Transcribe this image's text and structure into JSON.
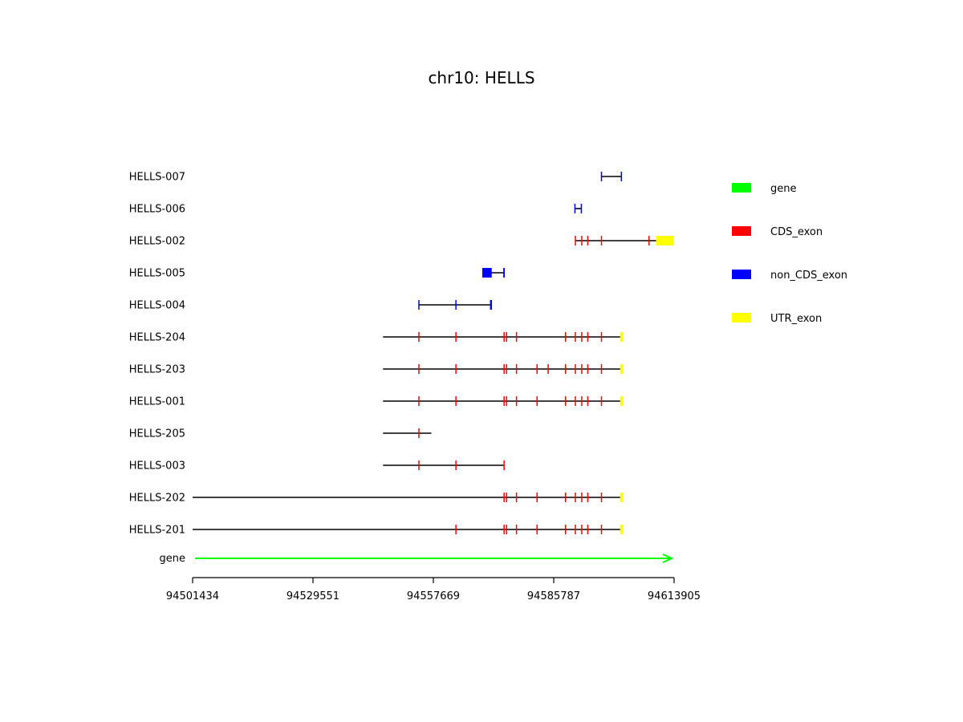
{
  "chart_data": {
    "type": "gene_structure",
    "title": "chr10: HELLS",
    "x_range": [
      94501434,
      94613905
    ],
    "x_ticks": [
      94501434,
      94529551,
      94557669,
      94585787,
      94613905
    ],
    "x_tick_labels": [
      "94501434",
      "94529551",
      "94557669",
      "94585787",
      "94613905"
    ],
    "gene": {
      "label": "gene",
      "start": 94502000,
      "end": 94612800,
      "strand": "+",
      "color": "#00ff00"
    },
    "legend": [
      {
        "name": "gene",
        "color": "#00ff00"
      },
      {
        "name": "CDS_exon",
        "color": "#ff0000"
      },
      {
        "name": "non_CDS_exon",
        "color": "#0000ff"
      },
      {
        "name": "UTR_exon",
        "color": "#ffff00"
      }
    ],
    "transcripts": [
      {
        "name": "HELLS-007",
        "start": 94596900,
        "end": 94601650,
        "exons": [
          {
            "start": 94596800,
            "end": 94596900,
            "type": "non_CDS_exon"
          },
          {
            "start": 94601450,
            "end": 94601700,
            "type": "non_CDS_exon"
          }
        ]
      },
      {
        "name": "HELLS-006",
        "start": 94590700,
        "end": 94592300,
        "exons": [
          {
            "start": 94590600,
            "end": 94590750,
            "type": "non_CDS_exon"
          },
          {
            "start": 94592100,
            "end": 94592350,
            "type": "non_CDS_exon"
          }
        ]
      },
      {
        "name": "HELLS-002",
        "start": 94590800,
        "end": 94613750,
        "exons": [
          {
            "start": 94590700,
            "end": 94590850,
            "type": "CDS_exon"
          },
          {
            "start": 94592200,
            "end": 94592400,
            "type": "CDS_exon"
          },
          {
            "start": 94593600,
            "end": 94593750,
            "type": "CDS_exon"
          },
          {
            "start": 94596800,
            "end": 94596950,
            "type": "CDS_exon"
          },
          {
            "start": 94607900,
            "end": 94608050,
            "type": "CDS_exon"
          },
          {
            "start": 94609700,
            "end": 94613750,
            "type": "UTR_exon"
          }
        ]
      },
      {
        "name": "HELLS-005",
        "start": 94569200,
        "end": 94574300,
        "exons": [
          {
            "start": 94569100,
            "end": 94571300,
            "type": "non_CDS_exon"
          },
          {
            "start": 94574000,
            "end": 94574350,
            "type": "non_CDS_exon"
          }
        ]
      },
      {
        "name": "HELLS-004",
        "start": 94554200,
        "end": 94571300,
        "exons": [
          {
            "start": 94554150,
            "end": 94554300,
            "type": "non_CDS_exon"
          },
          {
            "start": 94562800,
            "end": 94562950,
            "type": "non_CDS_exon"
          },
          {
            "start": 94570900,
            "end": 94571350,
            "type": "non_CDS_exon"
          }
        ]
      },
      {
        "name": "HELLS-204",
        "start": 94545900,
        "end": 94601700,
        "exons": [
          {
            "start": 94554150,
            "end": 94554300,
            "type": "CDS_exon"
          },
          {
            "start": 94562800,
            "end": 94562950,
            "type": "CDS_exon"
          },
          {
            "start": 94574050,
            "end": 94574200,
            "type": "CDS_exon"
          },
          {
            "start": 94574650,
            "end": 94574800,
            "type": "CDS_exon"
          },
          {
            "start": 94576950,
            "end": 94577100,
            "type": "CDS_exon"
          },
          {
            "start": 94588400,
            "end": 94588550,
            "type": "CDS_exon"
          },
          {
            "start": 94590700,
            "end": 94590850,
            "type": "CDS_exon"
          },
          {
            "start": 94592200,
            "end": 94592450,
            "type": "CDS_exon"
          },
          {
            "start": 94593600,
            "end": 94593750,
            "type": "CDS_exon"
          },
          {
            "start": 94596800,
            "end": 94596950,
            "type": "CDS_exon"
          },
          {
            "start": 94601300,
            "end": 94602000,
            "type": "UTR_exon"
          }
        ]
      },
      {
        "name": "HELLS-203",
        "start": 94545900,
        "end": 94601700,
        "exons": [
          {
            "start": 94554150,
            "end": 94554300,
            "type": "CDS_exon"
          },
          {
            "start": 94562800,
            "end": 94562950,
            "type": "CDS_exon"
          },
          {
            "start": 94574050,
            "end": 94574200,
            "type": "CDS_exon"
          },
          {
            "start": 94574650,
            "end": 94574800,
            "type": "CDS_exon"
          },
          {
            "start": 94576950,
            "end": 94577100,
            "type": "CDS_exon"
          },
          {
            "start": 94581750,
            "end": 94581900,
            "type": "CDS_exon"
          },
          {
            "start": 94584350,
            "end": 94584500,
            "type": "CDS_exon"
          },
          {
            "start": 94588400,
            "end": 94588550,
            "type": "CDS_exon"
          },
          {
            "start": 94590700,
            "end": 94590850,
            "type": "CDS_exon"
          },
          {
            "start": 94592200,
            "end": 94592450,
            "type": "CDS_exon"
          },
          {
            "start": 94593600,
            "end": 94593750,
            "type": "CDS_exon"
          },
          {
            "start": 94596800,
            "end": 94596950,
            "type": "CDS_exon"
          },
          {
            "start": 94601300,
            "end": 94602000,
            "type": "UTR_exon"
          }
        ]
      },
      {
        "name": "HELLS-001",
        "start": 94545900,
        "end": 94601700,
        "exons": [
          {
            "start": 94554150,
            "end": 94554300,
            "type": "CDS_exon"
          },
          {
            "start": 94562800,
            "end": 94562950,
            "type": "CDS_exon"
          },
          {
            "start": 94574050,
            "end": 94574200,
            "type": "CDS_exon"
          },
          {
            "start": 94574650,
            "end": 94574800,
            "type": "CDS_exon"
          },
          {
            "start": 94576950,
            "end": 94577100,
            "type": "CDS_exon"
          },
          {
            "start": 94581750,
            "end": 94581900,
            "type": "CDS_exon"
          },
          {
            "start": 94588400,
            "end": 94588550,
            "type": "CDS_exon"
          },
          {
            "start": 94590700,
            "end": 94590850,
            "type": "CDS_exon"
          },
          {
            "start": 94592200,
            "end": 94592450,
            "type": "CDS_exon"
          },
          {
            "start": 94593600,
            "end": 94593750,
            "type": "CDS_exon"
          },
          {
            "start": 94596800,
            "end": 94596950,
            "type": "CDS_exon"
          },
          {
            "start": 94601300,
            "end": 94602000,
            "type": "UTR_exon"
          }
        ]
      },
      {
        "name": "HELLS-205",
        "start": 94545900,
        "end": 94557200,
        "exons": [
          {
            "start": 94554150,
            "end": 94554300,
            "type": "CDS_exon"
          }
        ]
      },
      {
        "name": "HELLS-003",
        "start": 94545900,
        "end": 94574200,
        "exons": [
          {
            "start": 94554150,
            "end": 94554300,
            "type": "CDS_exon"
          },
          {
            "start": 94562800,
            "end": 94562950,
            "type": "CDS_exon"
          },
          {
            "start": 94574050,
            "end": 94574200,
            "type": "CDS_exon"
          }
        ]
      },
      {
        "name": "HELLS-202",
        "start": 94501434,
        "end": 94601700,
        "exons": [
          {
            "start": 94574050,
            "end": 94574200,
            "type": "CDS_exon"
          },
          {
            "start": 94574650,
            "end": 94574800,
            "type": "CDS_exon"
          },
          {
            "start": 94576950,
            "end": 94577100,
            "type": "CDS_exon"
          },
          {
            "start": 94581750,
            "end": 94581900,
            "type": "CDS_exon"
          },
          {
            "start": 94588400,
            "end": 94588550,
            "type": "CDS_exon"
          },
          {
            "start": 94590700,
            "end": 94590850,
            "type": "CDS_exon"
          },
          {
            "start": 94592200,
            "end": 94592450,
            "type": "CDS_exon"
          },
          {
            "start": 94593600,
            "end": 94593750,
            "type": "CDS_exon"
          },
          {
            "start": 94596800,
            "end": 94596950,
            "type": "CDS_exon"
          },
          {
            "start": 94601300,
            "end": 94602000,
            "type": "UTR_exon"
          }
        ]
      },
      {
        "name": "HELLS-201",
        "start": 94501434,
        "end": 94601700,
        "exons": [
          {
            "start": 94562800,
            "end": 94562950,
            "type": "CDS_exon"
          },
          {
            "start": 94574050,
            "end": 94574200,
            "type": "CDS_exon"
          },
          {
            "start": 94574650,
            "end": 94574800,
            "type": "CDS_exon"
          },
          {
            "start": 94576950,
            "end": 94577100,
            "type": "CDS_exon"
          },
          {
            "start": 94581750,
            "end": 94581900,
            "type": "CDS_exon"
          },
          {
            "start": 94588400,
            "end": 94588550,
            "type": "CDS_exon"
          },
          {
            "start": 94590700,
            "end": 94590850,
            "type": "CDS_exon"
          },
          {
            "start": 94592200,
            "end": 94592450,
            "type": "CDS_exon"
          },
          {
            "start": 94593600,
            "end": 94593750,
            "type": "CDS_exon"
          },
          {
            "start": 94596800,
            "end": 94596950,
            "type": "CDS_exon"
          },
          {
            "start": 94601300,
            "end": 94602000,
            "type": "UTR_exon"
          }
        ]
      }
    ]
  }
}
